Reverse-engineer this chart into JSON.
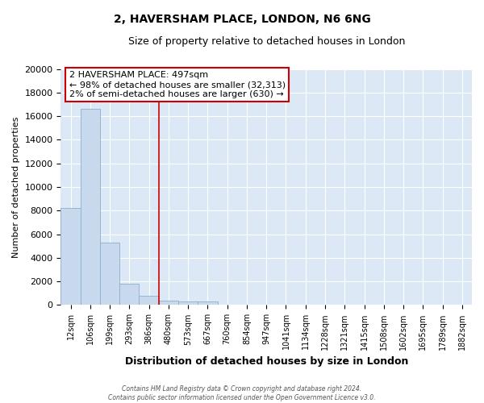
{
  "title": "2, HAVERSHAM PLACE, LONDON, N6 6NG",
  "subtitle": "Size of property relative to detached houses in London",
  "xlabel": "Distribution of detached houses by size in London",
  "ylabel": "Number of detached properties",
  "bar_labels": [
    "12sqm",
    "106sqm",
    "199sqm",
    "293sqm",
    "386sqm",
    "480sqm",
    "573sqm",
    "667sqm",
    "760sqm",
    "854sqm",
    "947sqm",
    "1041sqm",
    "1134sqm",
    "1228sqm",
    "1321sqm",
    "1415sqm",
    "1508sqm",
    "1602sqm",
    "1695sqm",
    "1789sqm",
    "1882sqm"
  ],
  "bar_values": [
    8200,
    16600,
    5300,
    1800,
    800,
    350,
    300,
    300,
    0,
    0,
    0,
    0,
    0,
    0,
    0,
    0,
    0,
    0,
    0,
    0,
    0
  ],
  "bar_color": "#c8d8ed",
  "bar_edge_color": "#8ab0d0",
  "grid_bg_color": "#dce8f5",
  "ylim": [
    0,
    20000
  ],
  "yticks": [
    0,
    2000,
    4000,
    6000,
    8000,
    10000,
    12000,
    14000,
    16000,
    18000,
    20000
  ],
  "vline_x": 5,
  "vline_color": "#cc0000",
  "annotation_title": "2 HAVERSHAM PLACE: 497sqm",
  "annotation_line1": "← 98% of detached houses are smaller (32,313)",
  "annotation_line2": "2% of semi-detached houses are larger (630) →",
  "annotation_box_color": "#ffffff",
  "annotation_border_color": "#cc0000",
  "footer_line1": "Contains HM Land Registry data © Crown copyright and database right 2024.",
  "footer_line2": "Contains public sector information licensed under the Open Government Licence v3.0.",
  "background_color": "#ffffff",
  "grid_color": "#c0d4e8"
}
